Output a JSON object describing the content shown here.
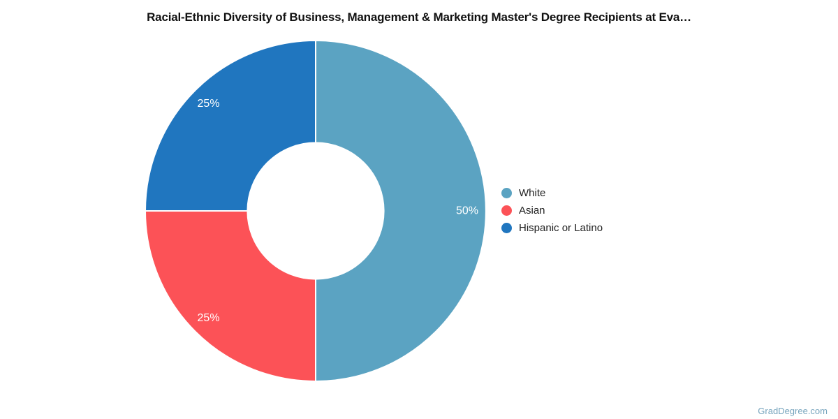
{
  "title": "Racial-Ethnic Diversity of Business, Management & Marketing Master's Degree Recipients at Eva…",
  "watermark": "GradDegree.com",
  "chart_data": {
    "type": "pie",
    "subtype": "donut",
    "title": "Racial-Ethnic Diversity of Business, Management & Marketing Master's Degree Recipients at Eva…",
    "categories": [
      "White",
      "Asian",
      "Hispanic or Latino"
    ],
    "values": [
      50,
      25,
      25
    ],
    "unit": "%",
    "slices": [
      {
        "label": "White",
        "value": 50,
        "display": "50%",
        "color": "#5ba3c2"
      },
      {
        "label": "Asian",
        "value": 25,
        "display": "25%",
        "color": "#fc5257"
      },
      {
        "label": "Hispanic or Latino",
        "value": 25,
        "display": "25%",
        "color": "#2076bf"
      }
    ],
    "start_angle_deg": 0,
    "direction": "clockwise",
    "inner_radius_ratio": 0.4,
    "slice_border_color": "#ffffff",
    "slice_border_width": 2,
    "label_color": "#ffffff",
    "legend_position": "right",
    "background": "#ffffff"
  }
}
